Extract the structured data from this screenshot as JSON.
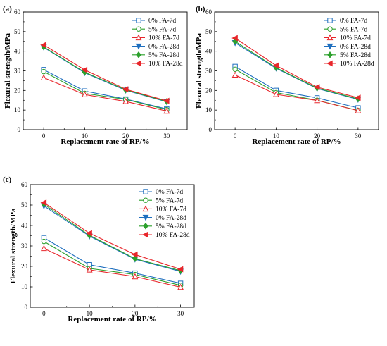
{
  "chart_data": [
    {
      "type": "line",
      "panel_label": "(a)",
      "xlabel": "Replacement rate of RP/%",
      "ylabel": "Flexural strength/MPa",
      "x": [
        0,
        10,
        20,
        30
      ],
      "xlim": [
        -5,
        35
      ],
      "ylim": [
        0,
        60
      ],
      "xticks": [
        "0",
        "10",
        "20",
        "30"
      ],
      "yticks": [
        "0",
        "10",
        "20",
        "30",
        "40",
        "50",
        "60"
      ],
      "grid": false,
      "legend_position": "top-right",
      "series": [
        {
          "name": "0% FA-7d",
          "color": "#1f6fbf",
          "marker": "square-open",
          "values": [
            30.6,
            19.7,
            15.6,
            10.6
          ]
        },
        {
          "name": "5% FA-7d",
          "color": "#2ca02c",
          "marker": "circle-open",
          "values": [
            29.6,
            18.5,
            15.4,
            10.2
          ]
        },
        {
          "name": "10% FA-7d",
          "color": "#e8262b",
          "marker": "triangle-up-open",
          "values": [
            26.5,
            17.9,
            14.4,
            9.5
          ]
        },
        {
          "name": "0% FA-28d",
          "color": "#1f6fbf",
          "marker": "triangle-down-filled",
          "values": [
            42.0,
            29.0,
            20.1,
            14.2
          ]
        },
        {
          "name": "5% FA-28d",
          "color": "#2ca02c",
          "marker": "diamond-filled",
          "values": [
            42.2,
            29.3,
            20.3,
            14.4
          ]
        },
        {
          "name": "10% FA-28d",
          "color": "#e8262b",
          "marker": "triangle-left-filled",
          "values": [
            43.2,
            30.5,
            20.6,
            14.7
          ]
        }
      ]
    },
    {
      "type": "line",
      "panel_label": "(b)",
      "xlabel": "Replacement rate of RP/%",
      "ylabel": "Flexural strength/MPa",
      "x": [
        0,
        10,
        20,
        30
      ],
      "xlim": [
        -5,
        35
      ],
      "ylim": [
        0,
        60
      ],
      "xticks": [
        "0",
        "10",
        "20",
        "30"
      ],
      "yticks": [
        "0",
        "10",
        "20",
        "30",
        "40",
        "50",
        "60"
      ],
      "grid": false,
      "legend_position": "top-right",
      "series": [
        {
          "name": "0% FA-7d",
          "color": "#1f6fbf",
          "marker": "square-open",
          "values": [
            32.2,
            20.0,
            16.2,
            11.1
          ]
        },
        {
          "name": "5% FA-7d",
          "color": "#2ca02c",
          "marker": "circle-open",
          "values": [
            30.8,
            18.9,
            15.0,
            9.8
          ]
        },
        {
          "name": "10% FA-7d",
          "color": "#e8262b",
          "marker": "triangle-up-open",
          "values": [
            27.9,
            18.0,
            14.9,
            9.7
          ]
        },
        {
          "name": "0% FA-28d",
          "color": "#1f6fbf",
          "marker": "triangle-down-filled",
          "values": [
            44.3,
            31.3,
            21.0,
            15.4
          ]
        },
        {
          "name": "5% FA-28d",
          "color": "#2ca02c",
          "marker": "diamond-filled",
          "values": [
            45.0,
            31.6,
            21.2,
            15.7
          ]
        },
        {
          "name": "10% FA-28d",
          "color": "#e8262b",
          "marker": "triangle-left-filled",
          "values": [
            46.7,
            32.7,
            21.7,
            16.3
          ]
        }
      ]
    },
    {
      "type": "line",
      "panel_label": "(c)",
      "xlabel": "Replacement rate of RP/%",
      "ylabel": "Flexural strength/MPa",
      "x": [
        0,
        10,
        20,
        30
      ],
      "xlim": [
        -3,
        33
      ],
      "ylim": [
        0,
        60
      ],
      "xticks": [
        "0",
        "10",
        "20",
        "30"
      ],
      "yticks": [
        "0",
        "10",
        "20",
        "30",
        "40",
        "50",
        "60"
      ],
      "grid": false,
      "legend_position": "top-right",
      "series": [
        {
          "name": "0% FA-7d",
          "color": "#1f6fbf",
          "marker": "square-open",
          "values": [
            34.0,
            20.8,
            16.7,
            11.7
          ]
        },
        {
          "name": "5% FA-7d",
          "color": "#2ca02c",
          "marker": "circle-open",
          "values": [
            32.2,
            19.0,
            16.0,
            10.7
          ]
        },
        {
          "name": "10% FA-7d",
          "color": "#e8262b",
          "marker": "triangle-up-open",
          "values": [
            28.8,
            18.3,
            15.0,
            9.8
          ]
        },
        {
          "name": "0% FA-28d",
          "color": "#1f6fbf",
          "marker": "triangle-down-filled",
          "values": [
            49.6,
            34.8,
            23.5,
            17.5
          ]
        },
        {
          "name": "5% FA-28d",
          "color": "#2ca02c",
          "marker": "diamond-filled",
          "values": [
            50.4,
            35.2,
            23.8,
            17.9
          ]
        },
        {
          "name": "10% FA-28d",
          "color": "#e8262b",
          "marker": "triangle-left-filled",
          "values": [
            51.2,
            36.2,
            25.8,
            18.6
          ]
        }
      ]
    }
  ]
}
